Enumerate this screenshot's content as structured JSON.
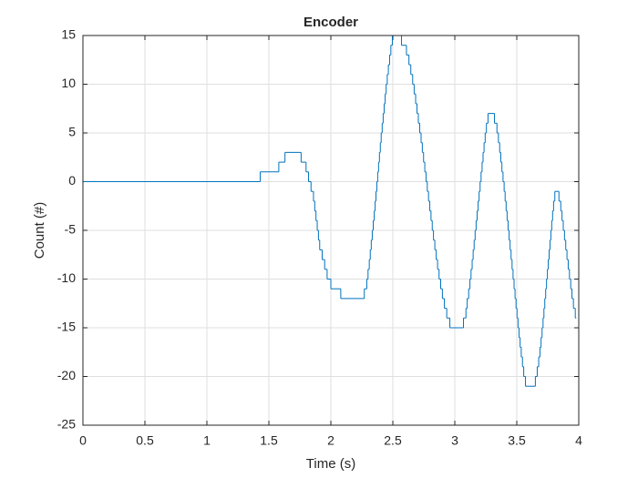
{
  "chart_data": {
    "type": "stairs",
    "title": "Encoder",
    "xlabel": "Time (s)",
    "ylabel": "Count (#)",
    "xlim": [
      0,
      4
    ],
    "ylim": [
      -25,
      15
    ],
    "xticks": [
      0,
      0.5,
      1,
      1.5,
      2,
      2.5,
      3,
      3.5,
      4
    ],
    "yticks": [
      -25,
      -20,
      -15,
      -10,
      -5,
      0,
      5,
      10,
      15
    ],
    "grid": true,
    "x": [
      0,
      1.43,
      1.58,
      1.63,
      1.76,
      1.8,
      1.82,
      1.84,
      1.86,
      1.87,
      1.88,
      1.89,
      1.9,
      1.91,
      1.93,
      1.95,
      1.97,
      2.0,
      2.08,
      2.27,
      2.29,
      2.3,
      2.31,
      2.318,
      2.326,
      2.334,
      2.342,
      2.35,
      2.357,
      2.364,
      2.371,
      2.378,
      2.385,
      2.392,
      2.399,
      2.406,
      2.414,
      2.422,
      2.43,
      2.438,
      2.446,
      2.455,
      2.464,
      2.474,
      2.484,
      2.496,
      2.57,
      2.61,
      2.63,
      2.645,
      2.66,
      2.672,
      2.684,
      2.695,
      2.706,
      2.717,
      2.728,
      2.738,
      2.748,
      2.758,
      2.768,
      2.778,
      2.788,
      2.798,
      2.808,
      2.818,
      2.828,
      2.839,
      2.85,
      2.861,
      2.873,
      2.886,
      2.9,
      2.916,
      2.935,
      2.96,
      3.07,
      3.09,
      3.1,
      3.112,
      3.122,
      3.131,
      3.14,
      3.148,
      3.156,
      3.164,
      3.172,
      3.18,
      3.188,
      3.196,
      3.204,
      3.212,
      3.22,
      3.228,
      3.236,
      3.245,
      3.255,
      3.268,
      3.32,
      3.34,
      3.352,
      3.362,
      3.371,
      3.38,
      3.389,
      3.398,
      3.406,
      3.414,
      3.422,
      3.43,
      3.438,
      3.446,
      3.454,
      3.462,
      3.47,
      3.478,
      3.486,
      3.494,
      3.502,
      3.51,
      3.518,
      3.527,
      3.536,
      3.546,
      3.556,
      3.57,
      3.65,
      3.665,
      3.677,
      3.687,
      3.696,
      3.704,
      3.712,
      3.719,
      3.726,
      3.733,
      3.74,
      3.747,
      3.754,
      3.761,
      3.768,
      3.775,
      3.782,
      3.789,
      3.797,
      3.807,
      3.84,
      3.855,
      3.865,
      3.875,
      3.885,
      3.895,
      3.905,
      3.915,
      3.925,
      3.935,
      3.945,
      3.957,
      3.972,
      3.98
    ],
    "series": [
      {
        "color": "#0072bd",
        "values": [
          0,
          1,
          2,
          3,
          2,
          1,
          0,
          -1,
          -2,
          -3,
          -4,
          -5,
          -6,
          -7,
          -8,
          -9,
          -10,
          -11,
          -12,
          -11,
          -10,
          -9,
          -8,
          -7,
          -6,
          -5,
          -4,
          -3,
          -2,
          -1,
          0,
          1,
          2,
          3,
          4,
          5,
          6,
          7,
          8,
          9,
          10,
          11,
          12,
          13,
          14,
          15,
          14,
          13,
          12,
          11,
          10,
          9,
          8,
          7,
          6,
          5,
          4,
          3,
          2,
          1,
          0,
          -1,
          -2,
          -3,
          -4,
          -5,
          -6,
          -7,
          -8,
          -9,
          -10,
          -11,
          -12,
          -13,
          -14,
          -15,
          -14,
          -13,
          -12,
          -11,
          -10,
          -9,
          -8,
          -7,
          -6,
          -5,
          -4,
          -3,
          -2,
          -1,
          0,
          1,
          2,
          3,
          4,
          5,
          6,
          7,
          6,
          5,
          4,
          3,
          2,
          1,
          0,
          -1,
          -2,
          -3,
          -4,
          -5,
          -6,
          -7,
          -8,
          -9,
          -10,
          -11,
          -12,
          -13,
          -14,
          -15,
          -16,
          -17,
          -18,
          -19,
          -20,
          -21,
          -20,
          -19,
          -18,
          -17,
          -16,
          -15,
          -14,
          -13,
          -12,
          -11,
          -10,
          -9,
          -8,
          -7,
          -6,
          -5,
          -4,
          -3,
          -2,
          -1,
          -2,
          -3,
          -4,
          -5,
          -6,
          -7,
          -8,
          -9,
          -10,
          -11,
          -12,
          -13,
          -14,
          -14
        ]
      }
    ]
  }
}
